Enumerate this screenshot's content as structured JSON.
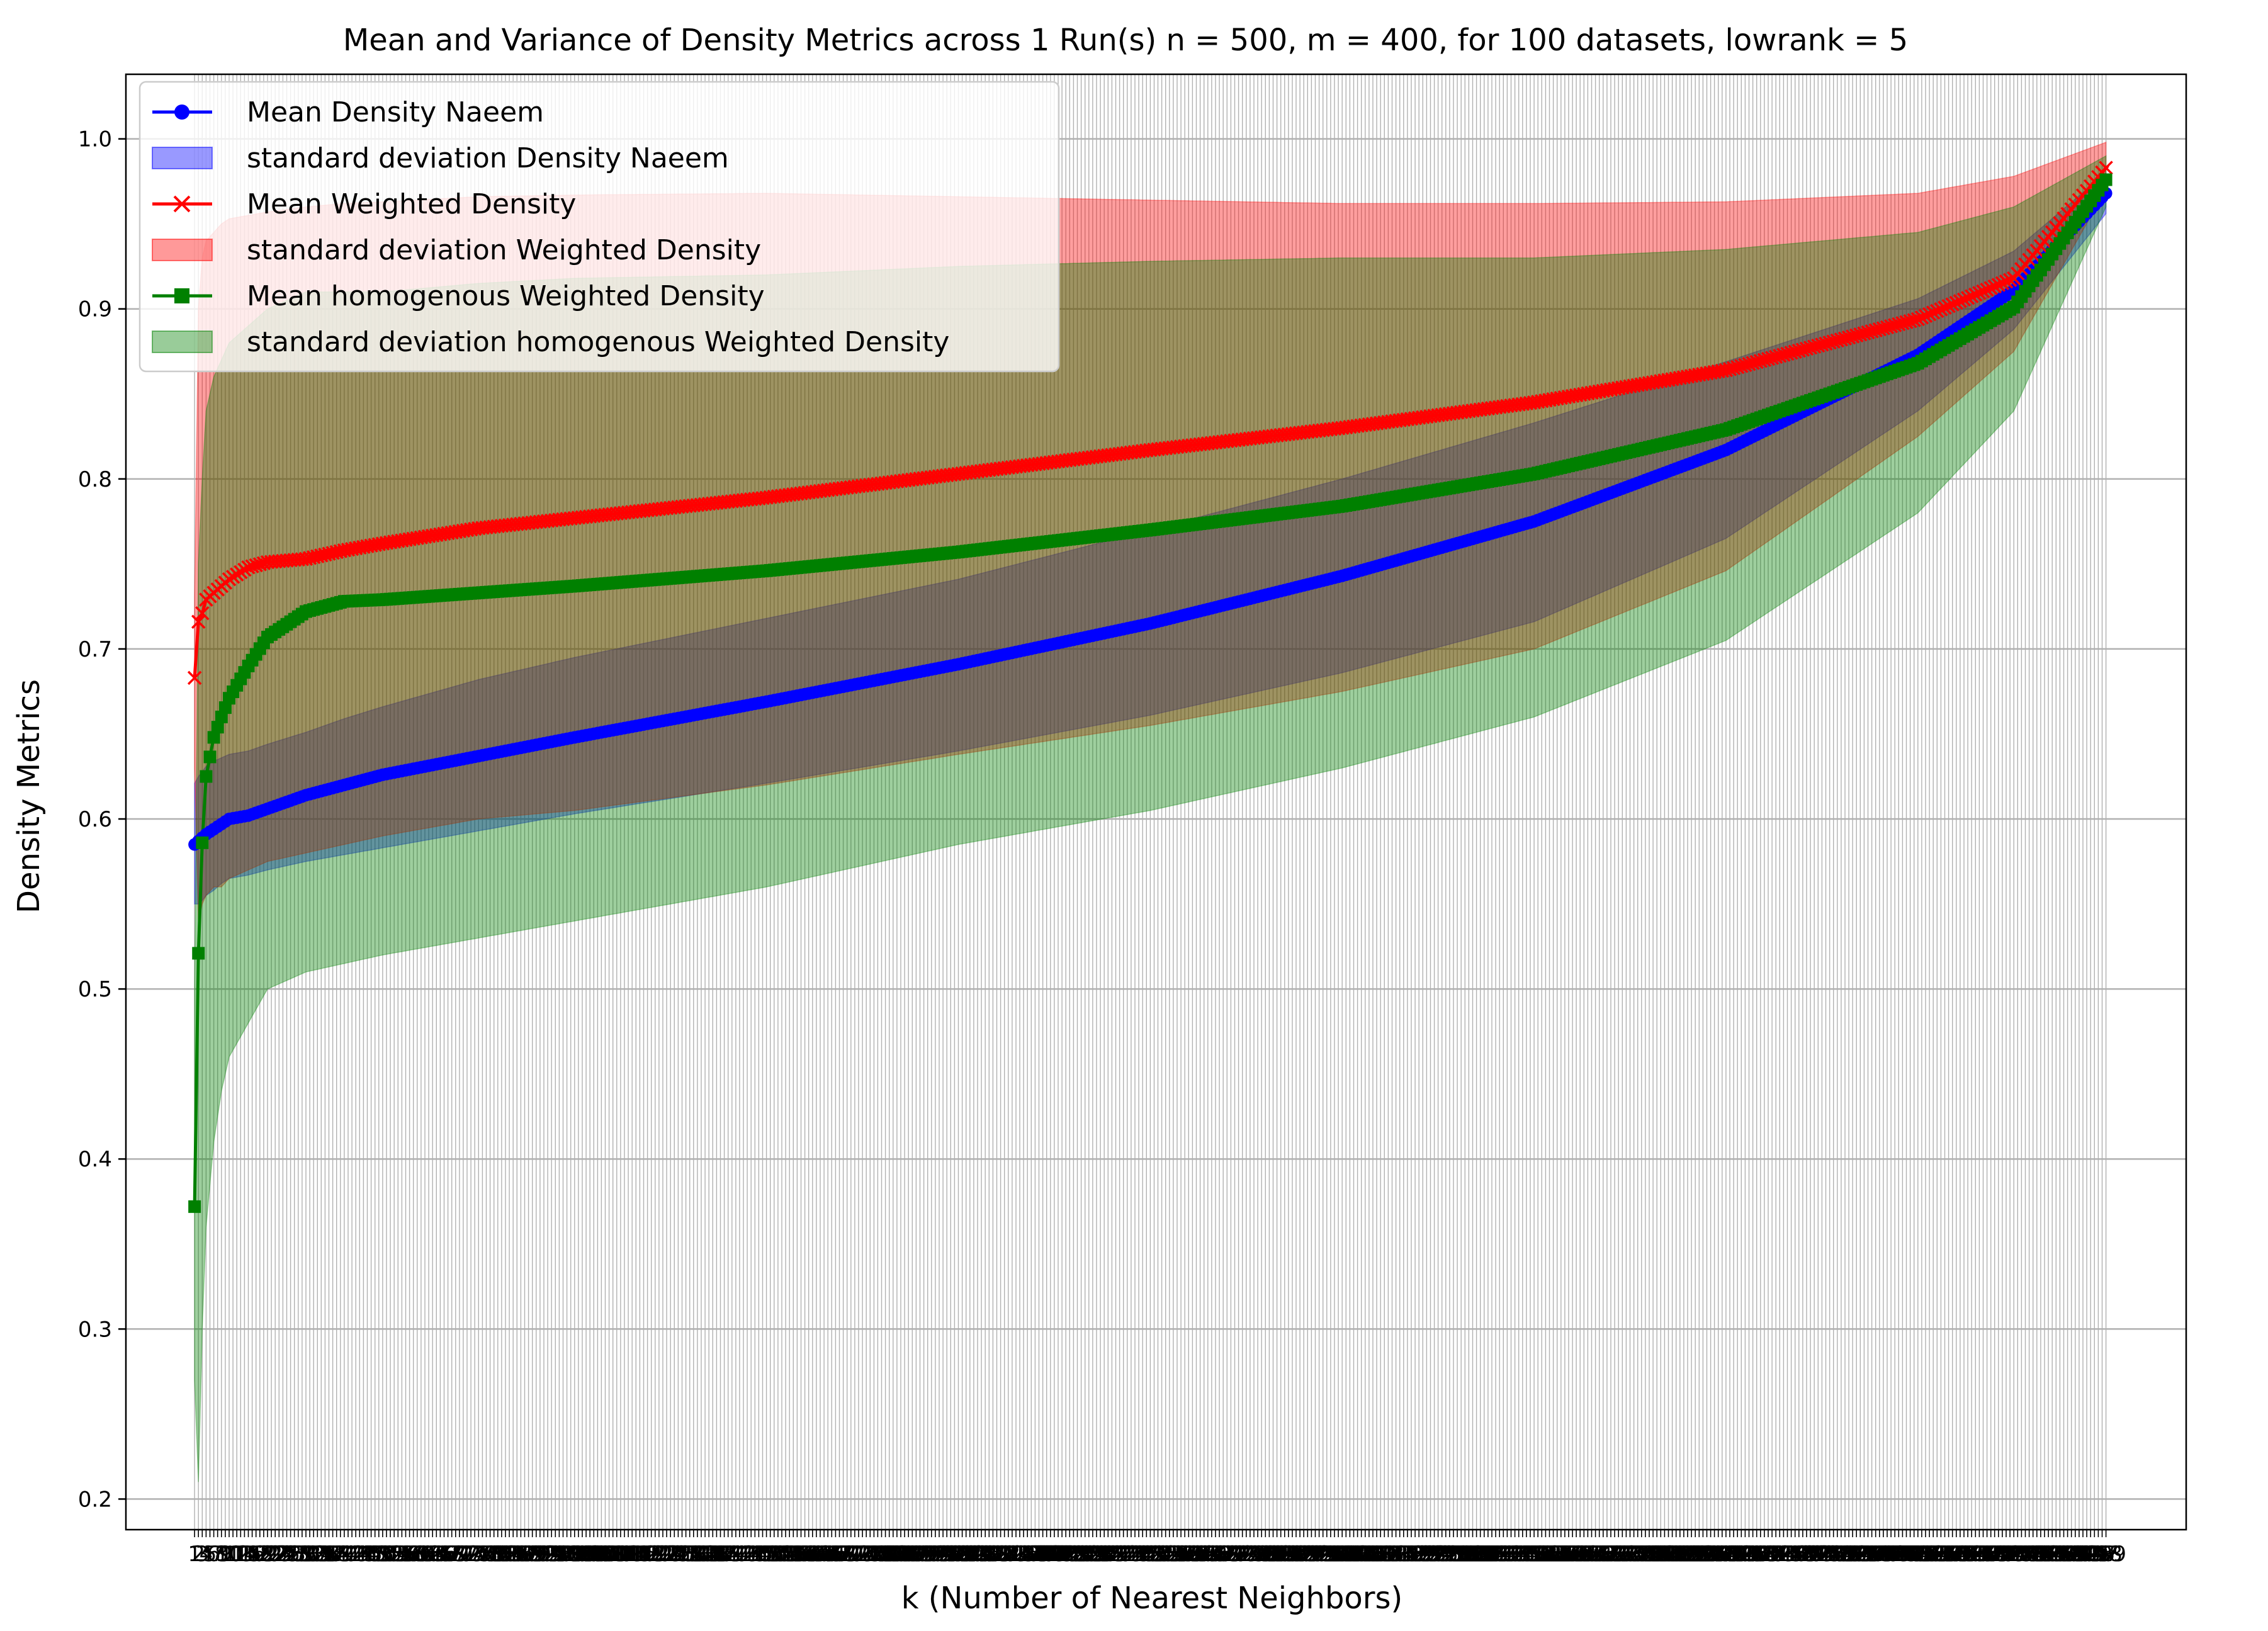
{
  "chart_data": {
    "type": "line",
    "title": "Mean and Variance of Density Metrics across 1 Run(s) n  = 500, m  = 400, for 100 datasets, lowrank = 5",
    "xlabel": "k (Number of Nearest Neighbors)",
    "ylabel": "Density Metrics",
    "xlim": [
      -16.9,
      519.9
    ],
    "ylim": [
      0.182,
      1.038
    ],
    "x_range": [
      1,
      499
    ],
    "x_tick_labels_note": "integer k labels 1..499 are drawn at every k and overlap into an illegible band; first visible '1', last visible '3'",
    "yticks": [
      0.2,
      0.3,
      0.4,
      0.5,
      0.6,
      0.7,
      0.8,
      0.9,
      1.0
    ],
    "ytick_labels": [
      "0.2",
      "0.3",
      "0.4",
      "0.5",
      "0.6",
      "0.7",
      "0.8",
      "0.9",
      "1.0"
    ],
    "grid": "horizontal",
    "legend_position": "top-left",
    "anchor_x": [
      1,
      2,
      3,
      4,
      6,
      8,
      10,
      15,
      20,
      30,
      40,
      50,
      75,
      100,
      150,
      200,
      250,
      300,
      350,
      400,
      450,
      475,
      499
    ],
    "series": [
      {
        "name": "Mean Density Naeem",
        "marker": "circle",
        "color": "#0000ff",
        "mean": [
          0.585,
          0.587,
          0.589,
          0.591,
          0.594,
          0.597,
          0.6,
          0.602,
          0.606,
          0.614,
          0.62,
          0.626,
          0.637,
          0.648,
          0.669,
          0.691,
          0.715,
          0.743,
          0.775,
          0.817,
          0.873,
          0.911,
          0.968
        ],
        "std_low": [
          0.55,
          0.55,
          0.552,
          0.555,
          0.558,
          0.562,
          0.565,
          0.567,
          0.57,
          0.575,
          0.579,
          0.583,
          0.593,
          0.603,
          0.621,
          0.64,
          0.661,
          0.686,
          0.716,
          0.765,
          0.84,
          0.888,
          0.956
        ],
        "std_high": [
          0.621,
          0.625,
          0.628,
          0.631,
          0.634,
          0.636,
          0.638,
          0.64,
          0.644,
          0.651,
          0.659,
          0.666,
          0.682,
          0.695,
          0.718,
          0.741,
          0.77,
          0.8,
          0.833,
          0.869,
          0.906,
          0.934,
          0.98
        ]
      },
      {
        "name": "Mean Weighted Density",
        "marker": "x",
        "color": "#ff0000",
        "mean": [
          0.683,
          0.716,
          0.721,
          0.729,
          0.733,
          0.737,
          0.741,
          0.748,
          0.751,
          0.753,
          0.758,
          0.762,
          0.771,
          0.777,
          0.789,
          0.803,
          0.817,
          0.83,
          0.845,
          0.864,
          0.894,
          0.918,
          0.983
        ],
        "std_low": [
          0.63,
          0.54,
          0.55,
          0.555,
          0.56,
          0.56,
          0.565,
          0.57,
          0.575,
          0.58,
          0.585,
          0.59,
          0.6,
          0.605,
          0.62,
          0.638,
          0.655,
          0.675,
          0.7,
          0.746,
          0.825,
          0.875,
          0.97
        ],
        "std_high": [
          0.73,
          0.9,
          0.93,
          0.94,
          0.945,
          0.95,
          0.953,
          0.955,
          0.957,
          0.96,
          0.962,
          0.963,
          0.966,
          0.967,
          0.968,
          0.966,
          0.964,
          0.962,
          0.962,
          0.963,
          0.968,
          0.978,
          0.998
        ]
      },
      {
        "name": "Mean homogenous Weighted Density",
        "marker": "square",
        "color": "#008000",
        "mean": [
          0.372,
          0.521,
          0.586,
          0.625,
          0.648,
          0.66,
          0.671,
          0.69,
          0.707,
          0.722,
          0.728,
          0.729,
          0.733,
          0.737,
          0.746,
          0.757,
          0.77,
          0.784,
          0.803,
          0.829,
          0.868,
          0.901,
          0.976
        ],
        "std_low": [
          0.27,
          0.21,
          0.3,
          0.36,
          0.41,
          0.44,
          0.46,
          0.48,
          0.5,
          0.51,
          0.515,
          0.52,
          0.53,
          0.54,
          0.56,
          0.585,
          0.605,
          0.63,
          0.66,
          0.705,
          0.78,
          0.84,
          0.96
        ],
        "std_high": [
          0.5,
          0.75,
          0.8,
          0.84,
          0.86,
          0.87,
          0.88,
          0.89,
          0.9,
          0.91,
          0.91,
          0.91,
          0.915,
          0.918,
          0.92,
          0.925,
          0.928,
          0.93,
          0.93,
          0.935,
          0.945,
          0.96,
          0.99
        ]
      }
    ],
    "legend": [
      {
        "label": "Mean Density Naeem",
        "kind": "line",
        "marker": "circle",
        "color": "#0000ff"
      },
      {
        "label": "standard deviation Density Naeem",
        "kind": "patch",
        "color": "#0000ff"
      },
      {
        "label": "Mean Weighted Density",
        "kind": "line",
        "marker": "x",
        "color": "#ff0000"
      },
      {
        "label": "standard deviation Weighted Density",
        "kind": "patch",
        "color": "#ff0000"
      },
      {
        "label": "Mean homogenous Weighted Density",
        "kind": "line",
        "marker": "square",
        "color": "#008000"
      },
      {
        "label": "standard deviation homogenous Weighted Density",
        "kind": "patch",
        "color": "#008000"
      }
    ]
  }
}
